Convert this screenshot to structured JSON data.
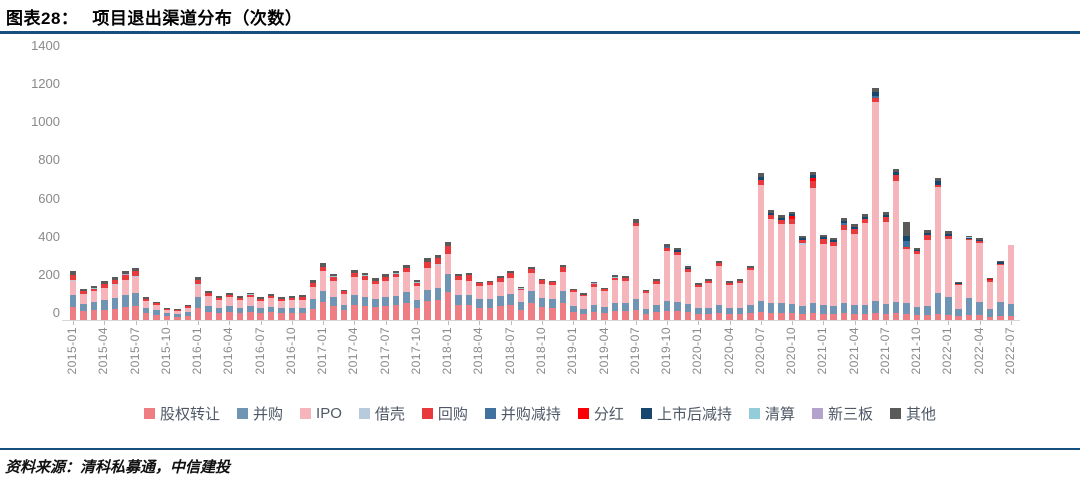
{
  "header": {
    "title_prefix": "图表28：",
    "title": "项目退出渠道分布（次数）"
  },
  "footer": {
    "source": "资料来源：清科私募通，中信建投"
  },
  "colors": {
    "rule": "#17507d",
    "axis_text": "#8a8a8a",
    "legend_text": "#4f5866",
    "axis_line": "#d6d6d6"
  },
  "chart_data": {
    "type": "bar",
    "stacked": true,
    "title": "项目退出渠道分布（次数）",
    "xlabel": "",
    "ylabel": "",
    "ylim": [
      0,
      1400
    ],
    "yticks": [
      0,
      200,
      400,
      600,
      800,
      1000,
      1200,
      1400
    ],
    "grid": false,
    "legend_position": "bottom",
    "x_tick_every": 3,
    "x_start_month": "2015-01",
    "x_end_month": "2022-07",
    "x_tick_labels": [
      "2015-01",
      "2015-04",
      "2015-07",
      "2015-10",
      "2016-01",
      "2016-04",
      "2016-07",
      "2016-10",
      "2017-01",
      "2017-04",
      "2017-07",
      "2017-10",
      "2018-01",
      "2018-04",
      "2018-07",
      "2018-10",
      "2019-01",
      "2019-04",
      "2019-07",
      "2019-10",
      "2020-01",
      "2020-04",
      "2020-07",
      "2020-10",
      "2021-01",
      "2021-04",
      "2021-07",
      "2021-10",
      "2022-01",
      "2022-04",
      "2022-07"
    ],
    "series": [
      {
        "id": "equity-transfer",
        "name": "股权转让",
        "color": "#ee7d84"
      },
      {
        "id": "ma",
        "name": "并购",
        "color": "#7094b3"
      },
      {
        "id": "ipo",
        "name": "IPO",
        "color": "#f5b5ba"
      },
      {
        "id": "backdoor-listing",
        "name": "借壳",
        "color": "#b8cbdc"
      },
      {
        "id": "buyback",
        "name": "回购",
        "color": "#e8393d"
      },
      {
        "id": "ma-reduction",
        "name": "并购减持",
        "color": "#41729f"
      },
      {
        "id": "dividend",
        "name": "分红",
        "color": "#fb0007"
      },
      {
        "id": "post-ipo-reduction",
        "name": "上市后减持",
        "color": "#17466e"
      },
      {
        "id": "liquidation",
        "name": "清算",
        "color": "#93cdda"
      },
      {
        "id": "neeq",
        "name": "新三板",
        "color": "#b3a3cc"
      },
      {
        "id": "other",
        "name": "其他",
        "color": "#5a5a5a"
      }
    ],
    "rows": [
      [
        70,
        60,
        75,
        5,
        25,
        0,
        0,
        0,
        0,
        0,
        20
      ],
      [
        45,
        40,
        50,
        0,
        15,
        0,
        0,
        0,
        0,
        0,
        15
      ],
      [
        50,
        45,
        55,
        0,
        15,
        0,
        0,
        0,
        5,
        0,
        10
      ],
      [
        55,
        50,
        65,
        0,
        20,
        0,
        0,
        0,
        0,
        0,
        15
      ],
      [
        60,
        55,
        70,
        5,
        20,
        0,
        0,
        0,
        0,
        0,
        15
      ],
      [
        70,
        60,
        80,
        0,
        25,
        0,
        0,
        0,
        0,
        5,
        15
      ],
      [
        75,
        65,
        85,
        5,
        25,
        0,
        0,
        0,
        0,
        0,
        20
      ],
      [
        35,
        30,
        35,
        0,
        10,
        0,
        0,
        0,
        0,
        0,
        10
      ],
      [
        25,
        25,
        30,
        0,
        10,
        0,
        0,
        0,
        0,
        0,
        5
      ],
      [
        20,
        15,
        20,
        0,
        5,
        0,
        0,
        0,
        0,
        0,
        5
      ],
      [
        15,
        15,
        15,
        0,
        5,
        0,
        0,
        0,
        0,
        0,
        5
      ],
      [
        20,
        20,
        25,
        0,
        10,
        0,
        0,
        0,
        0,
        0,
        5
      ],
      [
        65,
        55,
        65,
        5,
        20,
        0,
        0,
        0,
        0,
        0,
        15
      ],
      [
        40,
        35,
        50,
        0,
        15,
        0,
        0,
        0,
        0,
        0,
        10
      ],
      [
        35,
        30,
        40,
        0,
        10,
        0,
        0,
        0,
        0,
        0,
        10
      ],
      [
        40,
        35,
        45,
        0,
        10,
        0,
        0,
        0,
        0,
        0,
        10
      ],
      [
        35,
        30,
        40,
        0,
        10,
        0,
        0,
        0,
        0,
        0,
        10
      ],
      [
        40,
        35,
        45,
        0,
        10,
        0,
        0,
        0,
        5,
        0,
        5
      ],
      [
        35,
        30,
        35,
        0,
        10,
        0,
        0,
        0,
        0,
        0,
        10
      ],
      [
        40,
        30,
        45,
        0,
        10,
        0,
        0,
        0,
        0,
        0,
        10
      ],
      [
        35,
        30,
        35,
        0,
        10,
        0,
        0,
        0,
        0,
        0,
        10
      ],
      [
        35,
        30,
        40,
        0,
        10,
        0,
        0,
        0,
        0,
        0,
        10
      ],
      [
        35,
        30,
        40,
        0,
        15,
        0,
        0,
        0,
        0,
        0,
        10
      ],
      [
        60,
        50,
        65,
        0,
        20,
        0,
        0,
        0,
        0,
        0,
        15
      ],
      [
        95,
        55,
        105,
        0,
        25,
        0,
        0,
        0,
        0,
        0,
        20
      ],
      [
        75,
        45,
        85,
        0,
        20,
        0,
        0,
        0,
        5,
        0,
        10
      ],
      [
        50,
        30,
        55,
        0,
        15,
        0,
        0,
        0,
        0,
        0,
        10
      ],
      [
        80,
        50,
        95,
        0,
        20,
        0,
        0,
        0,
        0,
        0,
        15
      ],
      [
        75,
        45,
        90,
        0,
        20,
        0,
        0,
        0,
        5,
        0,
        10
      ],
      [
        68,
        40,
        80,
        0,
        18,
        0,
        0,
        0,
        0,
        0,
        12
      ],
      [
        75,
        45,
        85,
        0,
        20,
        0,
        0,
        0,
        0,
        0,
        15
      ],
      [
        80,
        48,
        95,
        0,
        20,
        0,
        0,
        0,
        5,
        0,
        10
      ],
      [
        90,
        55,
        105,
        0,
        25,
        0,
        0,
        0,
        0,
        0,
        15
      ],
      [
        65,
        40,
        75,
        0,
        15,
        0,
        0,
        0,
        5,
        0,
        10
      ],
      [
        100,
        60,
        115,
        0,
        30,
        0,
        0,
        0,
        0,
        0,
        20
      ],
      [
        105,
        65,
        120,
        5,
        30,
        0,
        0,
        0,
        0,
        0,
        15
      ],
      [
        145,
        95,
        105,
        0,
        45,
        0,
        0,
        0,
        0,
        0,
        20
      ],
      [
        80,
        50,
        80,
        0,
        20,
        0,
        0,
        0,
        0,
        0,
        10
      ],
      [
        80,
        50,
        75,
        0,
        30,
        0,
        0,
        0,
        0,
        0,
        10
      ],
      [
        65,
        45,
        70,
        0,
        12,
        0,
        0,
        0,
        0,
        0,
        8
      ],
      [
        65,
        45,
        75,
        0,
        12,
        0,
        0,
        0,
        0,
        0,
        8
      ],
      [
        75,
        50,
        75,
        0,
        22,
        0,
        0,
        0,
        0,
        0,
        8
      ],
      [
        80,
        55,
        85,
        0,
        25,
        0,
        0,
        0,
        0,
        0,
        10
      ],
      [
        55,
        40,
        60,
        0,
        10,
        0,
        0,
        0,
        5,
        0,
        5
      ],
      [
        90,
        60,
        95,
        0,
        25,
        0,
        0,
        0,
        0,
        0,
        10
      ],
      [
        70,
        45,
        75,
        0,
        18,
        0,
        0,
        0,
        0,
        0,
        7
      ],
      [
        65,
        45,
        72,
        0,
        15,
        0,
        0,
        0,
        0,
        0,
        8
      ],
      [
        90,
        60,
        100,
        0,
        28,
        0,
        0,
        0,
        0,
        0,
        12
      ],
      [
        40,
        35,
        70,
        0,
        12,
        0,
        0,
        0,
        0,
        0,
        8
      ],
      [
        30,
        30,
        65,
        0,
        8,
        0,
        0,
        0,
        0,
        0,
        7
      ],
      [
        40,
        40,
        95,
        0,
        12,
        0,
        0,
        0,
        0,
        5,
        8
      ],
      [
        35,
        35,
        80,
        0,
        12,
        0,
        0,
        0,
        0,
        0,
        8
      ],
      [
        45,
        45,
        120,
        0,
        12,
        0,
        0,
        0,
        5,
        0,
        8
      ],
      [
        45,
        45,
        115,
        0,
        15,
        0,
        0,
        0,
        0,
        0,
        10
      ],
      [
        50,
        60,
        385,
        0,
        15,
        0,
        0,
        0,
        0,
        0,
        20
      ],
      [
        30,
        30,
        80,
        0,
        12,
        0,
        0,
        0,
        0,
        0,
        8
      ],
      [
        40,
        40,
        110,
        0,
        15,
        0,
        0,
        0,
        0,
        0,
        10
      ],
      [
        45,
        55,
        260,
        0,
        15,
        10,
        0,
        0,
        0,
        0,
        15
      ],
      [
        45,
        50,
        245,
        0,
        15,
        0,
        0,
        10,
        0,
        0,
        10
      ],
      [
        40,
        45,
        165,
        0,
        15,
        0,
        0,
        10,
        0,
        0,
        10
      ],
      [
        30,
        35,
        110,
        0,
        10,
        0,
        0,
        0,
        0,
        0,
        10
      ],
      [
        30,
        35,
        130,
        0,
        10,
        0,
        0,
        0,
        0,
        0,
        10
      ],
      [
        35,
        45,
        205,
        0,
        12,
        0,
        0,
        0,
        0,
        0,
        13
      ],
      [
        30,
        35,
        120,
        0,
        10,
        0,
        0,
        0,
        0,
        0,
        10
      ],
      [
        30,
        35,
        130,
        0,
        10,
        0,
        0,
        0,
        0,
        0,
        10
      ],
      [
        35,
        45,
        180,
        0,
        12,
        0,
        0,
        0,
        0,
        0,
        13
      ],
      [
        40,
        60,
        610,
        0,
        25,
        0,
        0,
        15,
        0,
        0,
        20
      ],
      [
        35,
        55,
        440,
        0,
        20,
        0,
        0,
        10,
        0,
        0,
        15
      ],
      [
        35,
        55,
        415,
        0,
        20,
        0,
        0,
        10,
        0,
        0,
        15
      ],
      [
        35,
        50,
        420,
        0,
        25,
        0,
        15,
        10,
        0,
        0,
        10
      ],
      [
        30,
        45,
        320,
        10,
        15,
        0,
        0,
        10,
        0,
        0,
        10
      ],
      [
        35,
        55,
        600,
        0,
        40,
        0,
        15,
        15,
        0,
        0,
        15
      ],
      [
        30,
        50,
        320,
        0,
        25,
        0,
        0,
        10,
        0,
        0,
        10
      ],
      [
        30,
        45,
        315,
        0,
        20,
        0,
        0,
        10,
        0,
        0,
        10
      ],
      [
        35,
        55,
        380,
        0,
        30,
        10,
        0,
        10,
        0,
        0,
        15
      ],
      [
        30,
        50,
        370,
        0,
        25,
        0,
        0,
        15,
        0,
        0,
        15
      ],
      [
        30,
        50,
        430,
        0,
        20,
        0,
        0,
        10,
        0,
        0,
        15
      ],
      [
        35,
        65,
        1045,
        0,
        20,
        10,
        0,
        20,
        0,
        0,
        20
      ],
      [
        30,
        55,
        430,
        0,
        25,
        0,
        0,
        10,
        0,
        0,
        15
      ],
      [
        35,
        60,
        635,
        0,
        30,
        0,
        0,
        15,
        0,
        0,
        15
      ],
      [
        30,
        60,
        280,
        0,
        15,
        30,
        0,
        25,
        0,
        0,
        75
      ],
      [
        25,
        45,
        275,
        0,
        15,
        0,
        0,
        5,
        0,
        0,
        10
      ],
      [
        25,
        50,
        345,
        0,
        25,
        0,
        0,
        10,
        0,
        0,
        15
      ],
      [
        30,
        110,
        555,
        0,
        15,
        0,
        0,
        20,
        0,
        0,
        15
      ],
      [
        25,
        95,
        305,
        0,
        15,
        0,
        0,
        10,
        0,
        0,
        15
      ],
      [
        20,
        40,
        125,
        0,
        5,
        0,
        0,
        5,
        0,
        0,
        5
      ],
      [
        25,
        90,
        305,
        0,
        5,
        0,
        0,
        5,
        5,
        0,
        5
      ],
      [
        25,
        70,
        310,
        0,
        10,
        0,
        0,
        5,
        0,
        0,
        10
      ],
      [
        15,
        45,
        140,
        0,
        10,
        0,
        5,
        0,
        0,
        0,
        5
      ],
      [
        20,
        75,
        195,
        0,
        5,
        0,
        0,
        10,
        0,
        0,
        5
      ],
      [
        20,
        65,
        310,
        0,
        0,
        0,
        0,
        0,
        0,
        0,
        0
      ]
    ]
  }
}
